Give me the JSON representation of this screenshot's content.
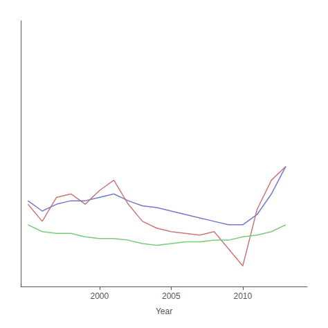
{
  "chart_data": {
    "type": "line",
    "x": [
      1995,
      1996,
      1997,
      1998,
      1999,
      2000,
      2001,
      2002,
      2003,
      2004,
      2005,
      2006,
      2007,
      2008,
      2009,
      2010,
      2011,
      2012,
      2013
    ],
    "series": [
      {
        "color": "#cc7777",
        "values": [
          0.78,
          0.68,
          0.82,
          0.84,
          0.78,
          0.86,
          0.92,
          0.78,
          0.68,
          0.64,
          0.62,
          0.61,
          0.6,
          0.62,
          0.52,
          0.42,
          0.75,
          0.92,
          1.0
        ]
      },
      {
        "color": "#7777cc",
        "values": [
          0.8,
          0.74,
          0.78,
          0.8,
          0.8,
          0.82,
          0.84,
          0.8,
          0.77,
          0.76,
          0.74,
          0.72,
          0.7,
          0.68,
          0.66,
          0.66,
          0.72,
          0.84,
          1.0
        ]
      },
      {
        "color": "#77cc77",
        "values": [
          0.66,
          0.62,
          0.61,
          0.61,
          0.59,
          0.58,
          0.58,
          0.57,
          0.55,
          0.54,
          0.55,
          0.56,
          0.56,
          0.57,
          0.57,
          0.59,
          0.6,
          0.62,
          0.66
        ]
      }
    ],
    "xlabel": "Year",
    "xlim": [
      1994.5,
      2014.5
    ],
    "xticks": [
      2000,
      2005,
      2010
    ],
    "ylim": [
      0.3,
      1.85
    ],
    "tick_labels": "x",
    "grid": false
  }
}
